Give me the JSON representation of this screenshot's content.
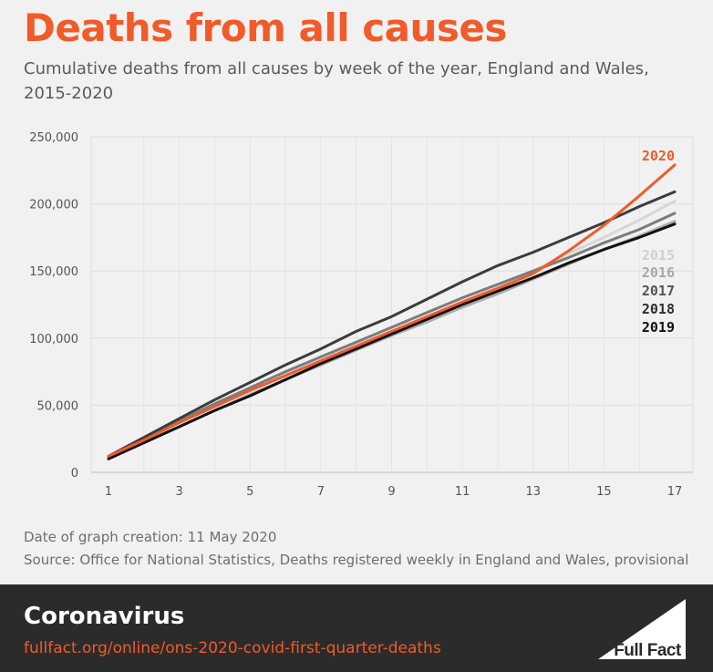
{
  "header": {
    "title": "Deaths from all causes",
    "subtitle": "Cumulative deaths from all causes by week of the year, England and Wales, 2015-2020"
  },
  "footer": {
    "created": "Date of graph creation: 11 May 2020",
    "source": "Source: Office for National Statistics, Deaths registered weekly in England and Wales, provisional"
  },
  "banner": {
    "topic": "Coronavirus",
    "url": "fullfact.org/online/ons-2020-covid-first-quarter-deaths",
    "logo_text": "Full Fact"
  },
  "colors": {
    "accent": "#f15a29",
    "banner_bg": "#2b2b2b",
    "background": "#f1f1f1"
  },
  "chart_data": {
    "type": "line",
    "x": [
      1,
      2,
      3,
      4,
      5,
      6,
      7,
      8,
      9,
      10,
      11,
      12,
      13,
      14,
      15,
      16,
      17
    ],
    "xticks": [
      1,
      3,
      5,
      7,
      9,
      11,
      13,
      15,
      17
    ],
    "xtick_labels": [
      "1",
      "3",
      "5",
      "7",
      "9",
      "11",
      "13",
      "15",
      "17"
    ],
    "yticks": [
      0,
      50000,
      100000,
      150000,
      200000,
      250000
    ],
    "ytick_labels": [
      "0",
      "50,000",
      "100,000",
      "150,000",
      "200,000",
      "250,000"
    ],
    "xlim": [
      1,
      17
    ],
    "ylim": [
      0,
      250000
    ],
    "grid": true,
    "legend": "right",
    "series": [
      {
        "name": "2015",
        "color": "#d6d6d6",
        "values": [
          12000,
          25000,
          37000,
          49000,
          61000,
          73000,
          84000,
          95000,
          105000,
          116000,
          127000,
          138000,
          150000,
          163000,
          175000,
          188000,
          202000
        ]
      },
      {
        "name": "2016",
        "color": "#ababab",
        "values": [
          11000,
          22000,
          34000,
          46000,
          58000,
          69000,
          80000,
          91000,
          102000,
          112000,
          123000,
          133000,
          144000,
          155000,
          166000,
          176000,
          187000
        ]
      },
      {
        "name": "2017",
        "color": "#7c7c7c",
        "values": [
          12000,
          25000,
          38000,
          51000,
          63000,
          75000,
          86000,
          97000,
          108000,
          119000,
          130000,
          140000,
          150000,
          160000,
          171000,
          181000,
          193000
        ]
      },
      {
        "name": "2018",
        "color": "#3c3c3c",
        "values": [
          12000,
          26000,
          40000,
          54000,
          67000,
          80000,
          92000,
          105000,
          116000,
          129000,
          142000,
          154000,
          164000,
          175000,
          186000,
          198000,
          209000
        ]
      },
      {
        "name": "2019",
        "color": "#111111",
        "values": [
          10000,
          22000,
          34000,
          46000,
          57000,
          69000,
          81000,
          92000,
          103000,
          114000,
          125000,
          135000,
          145000,
          156000,
          166000,
          175000,
          185000
        ]
      },
      {
        "name": "2020",
        "color": "#f15a29",
        "values": [
          12000,
          24000,
          37000,
          49000,
          61000,
          72000,
          83000,
          94000,
          105000,
          116000,
          127000,
          137000,
          148000,
          165000,
          184000,
          206000,
          229000
        ]
      }
    ]
  }
}
